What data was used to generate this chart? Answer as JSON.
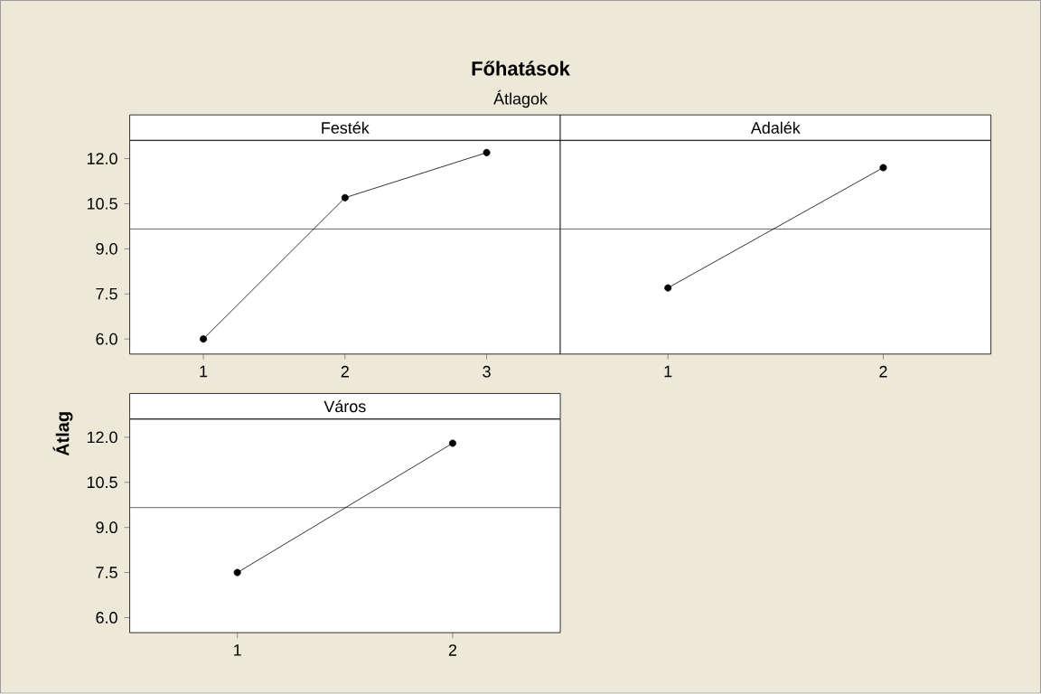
{
  "chart_data": [
    {
      "type": "other",
      "title": "Főhatások",
      "subtitle": "Átlagok",
      "ylabel": "Átlag"
    },
    {
      "type": "line",
      "title": "Festék",
      "x": [
        1,
        2,
        3
      ],
      "series": [
        {
          "color": "#000000",
          "values": [
            6.0,
            10.7,
            12.2
          ]
        }
      ],
      "xlim": [
        0.48,
        3.52
      ],
      "xticks": [
        1,
        2,
        3
      ],
      "ylim": [
        5.5,
        12.6
      ],
      "yticks": [
        {
          "value": 6,
          "label": "6.0"
        },
        {
          "value": 7.5,
          "label": "7.5"
        },
        {
          "value": 9,
          "label": "9.0"
        },
        {
          "value": 10.5,
          "label": "10.5"
        },
        {
          "value": 12,
          "label": "12.0"
        }
      ],
      "ref_lines": [
        {
          "axis": "y",
          "value": 9.66,
          "color": "#404040"
        }
      ],
      "marker": "circle",
      "line_style": "solid"
    },
    {
      "type": "line",
      "title": "Adalék",
      "x": [
        1,
        2
      ],
      "series": [
        {
          "color": "#000000",
          "values": [
            7.7,
            11.7
          ]
        }
      ],
      "xlim": [
        0.5,
        2.5
      ],
      "xticks": [
        1,
        2
      ],
      "ylim": [
        5.5,
        12.6
      ],
      "tick_labels": "x",
      "ref_lines": [
        {
          "axis": "y",
          "value": 9.66,
          "color": "#404040"
        }
      ],
      "marker": "circle",
      "line_style": "solid"
    },
    {
      "type": "line",
      "title": "Város",
      "x": [
        1,
        2
      ],
      "series": [
        {
          "color": "#000000",
          "values": [
            7.5,
            11.8
          ]
        }
      ],
      "xlim": [
        0.5,
        2.5
      ],
      "xticks": [
        1,
        2
      ],
      "ylim": [
        5.5,
        12.6
      ],
      "yticks": [
        {
          "value": 6,
          "label": "6.0"
        },
        {
          "value": 7.5,
          "label": "7.5"
        },
        {
          "value": 9,
          "label": "9.0"
        },
        {
          "value": 10.5,
          "label": "10.5"
        },
        {
          "value": 12,
          "label": "12.0"
        }
      ],
      "ref_lines": [
        {
          "axis": "y",
          "value": 9.66,
          "color": "#404040"
        }
      ],
      "marker": "circle",
      "line_style": "solid"
    }
  ]
}
